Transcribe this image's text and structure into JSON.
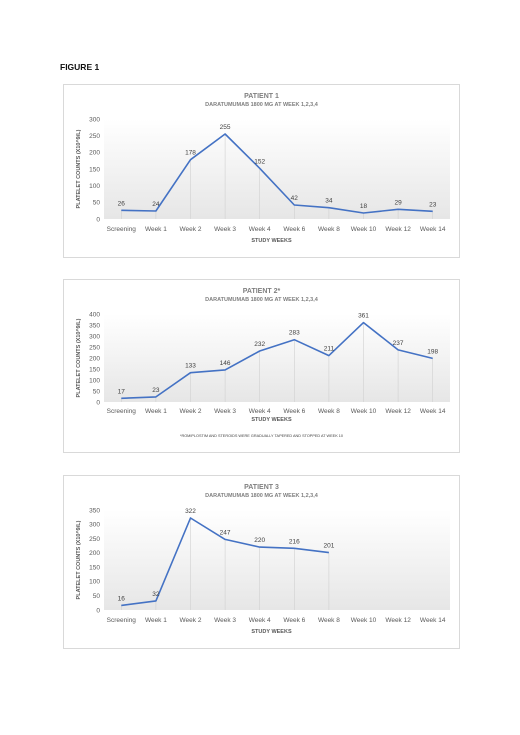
{
  "figure_label": "FIGURE 1",
  "chart_data": [
    {
      "type": "line",
      "title": "PATIENT 1",
      "subtitle": "DARATUMUMAB 1800 MG AT WEEK 1,2,3,4",
      "xlabel": "STUDY WEEKS",
      "ylabel": "PLATELET COUNTS (X10^9/L)",
      "categories": [
        "Screening",
        "Week 1",
        "Week 2",
        "Week 3",
        "Week 4",
        "Week 6",
        "Week 8",
        "Week 10",
        "Week 12",
        "Week 14"
      ],
      "yticks": [
        0,
        50,
        100,
        150,
        200,
        250,
        300
      ],
      "ylim": [
        0,
        300
      ],
      "values": [
        26,
        24,
        178,
        255,
        152,
        42,
        34,
        18,
        29,
        23
      ],
      "line_color": "#4472C4",
      "grid": false,
      "footnote": ""
    },
    {
      "type": "line",
      "title": "PATIENT 2*",
      "subtitle": "DARATUMUMAB 1800 MG AT WEEK  1,2,3,4",
      "xlabel": "STUDY WEEKS",
      "ylabel": "PLATELET COUNTS (X10^9/L)",
      "categories": [
        "Screening",
        "Week 1",
        "Week 2",
        "Week 3",
        "Week 4",
        "Week 6",
        "Week 8",
        "Week 10",
        "Week 12",
        "Week 14"
      ],
      "yticks": [
        0,
        50,
        100,
        150,
        200,
        250,
        300,
        350,
        400
      ],
      "ylim": [
        0,
        400
      ],
      "values": [
        17,
        23,
        133,
        146,
        232,
        283,
        211,
        361,
        237,
        198
      ],
      "line_color": "#4472C4",
      "grid": false,
      "footnote": "*ROMIPLOSTIM AND STEROIDS WERE GRADUALLY TAPERED AND STOPPED AT WEEK 10"
    },
    {
      "type": "line",
      "title": "PATIENT 3",
      "subtitle": "DARATUMUMAB 1800 MG AT WEEK 1,2,3,4",
      "xlabel": "STUDY WEEKS",
      "ylabel": "PLATELET COUNTS (X10^9/L)",
      "categories": [
        "Screening",
        "Week 1",
        "Week 2",
        "Week 3",
        "Week 4",
        "Week 6",
        "Week 8",
        "Week 10",
        "Week 12",
        "Week 14"
      ],
      "yticks": [
        0,
        50,
        100,
        150,
        200,
        250,
        300,
        350
      ],
      "ylim": [
        0,
        350
      ],
      "values": [
        16,
        32,
        322,
        247,
        220,
        216,
        201,
        null,
        null,
        null
      ],
      "line_color": "#4472C4",
      "grid": false,
      "footnote": ""
    }
  ]
}
